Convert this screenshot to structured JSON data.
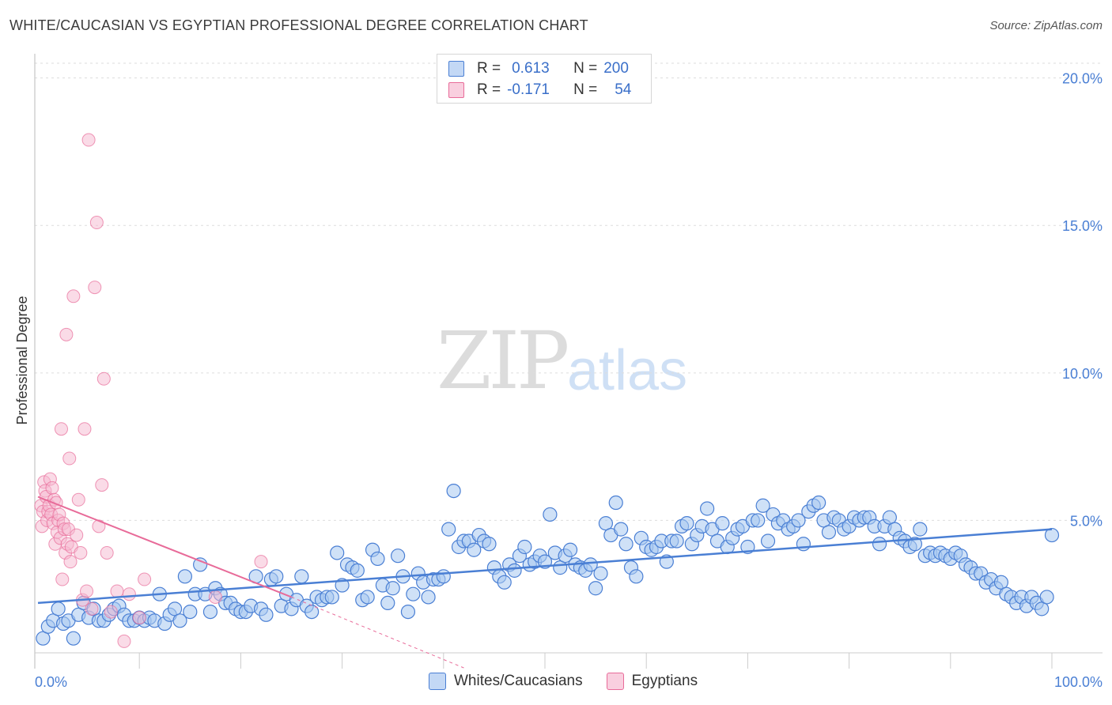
{
  "title": "WHITE/CAUCASIAN VS EGYPTIAN PROFESSIONAL DEGREE CORRELATION CHART",
  "source": "Source: ZipAtlas.com",
  "watermark": {
    "zip": "ZIP",
    "atlas": "atlas"
  },
  "colors": {
    "blue": "#4a7fd4",
    "blue_fill": "#a8c8f0",
    "pink": "#e86b99",
    "pink_fill": "#f6b8cf"
  },
  "legend": {
    "rows": [
      {
        "r_label": "R =",
        "r_value": "0.613",
        "n_label": "N =",
        "n_value": "200"
      },
      {
        "r_label": "R =",
        "r_value": "-0.171",
        "n_label": "N =",
        "n_value": "54"
      }
    ]
  },
  "bottom_legend": {
    "series1": "Whites/Caucasians",
    "series2": "Egyptians"
  },
  "chart_data": {
    "type": "scatter",
    "title": "WHITE/CAUCASIAN VS EGYPTIAN PROFESSIONAL DEGREE CORRELATION CHART",
    "xlabel": "",
    "ylabel": "Professional Degree",
    "xlim": [
      0,
      100
    ],
    "ylim": [
      0,
      20.5
    ],
    "y_ticks": [
      5,
      10,
      15,
      20
    ],
    "y_tick_labels": [
      "5.0%",
      "10.0%",
      "15.0%",
      "20.0%"
    ],
    "x_tick_labels": [
      "0.0%",
      "100.0%"
    ],
    "series": [
      {
        "name": "Whites/Caucasians",
        "r": 0.613,
        "n": 200,
        "trend": [
          [
            0,
            2.2
          ],
          [
            100,
            4.7
          ]
        ],
        "points": [
          [
            0.5,
            1.0
          ],
          [
            1,
            1.4
          ],
          [
            1.5,
            1.6
          ],
          [
            2,
            2.0
          ],
          [
            2.5,
            1.5
          ],
          [
            3,
            1.6
          ],
          [
            3.5,
            1.0
          ],
          [
            4,
            1.8
          ],
          [
            4.5,
            2.2
          ],
          [
            5,
            1.7
          ],
          [
            5.5,
            2.0
          ],
          [
            6,
            1.6
          ],
          [
            6.5,
            1.6
          ],
          [
            7,
            1.8
          ],
          [
            7.5,
            2.0
          ],
          [
            8,
            2.1
          ],
          [
            8.5,
            1.8
          ],
          [
            9,
            1.6
          ],
          [
            9.5,
            1.6
          ],
          [
            10,
            1.7
          ],
          [
            10.5,
            1.6
          ],
          [
            11,
            1.7
          ],
          [
            11.5,
            1.6
          ],
          [
            12,
            2.5
          ],
          [
            12.5,
            1.5
          ],
          [
            13,
            1.8
          ],
          [
            13.5,
            2.0
          ],
          [
            14,
            1.6
          ],
          [
            14.5,
            3.1
          ],
          [
            15,
            1.9
          ],
          [
            15.5,
            2.5
          ],
          [
            16,
            3.5
          ],
          [
            16.5,
            2.5
          ],
          [
            17,
            1.9
          ],
          [
            17.5,
            2.7
          ],
          [
            18,
            2.5
          ],
          [
            18.5,
            2.2
          ],
          [
            19,
            2.2
          ],
          [
            19.5,
            2.0
          ],
          [
            20,
            1.9
          ],
          [
            20.5,
            1.9
          ],
          [
            21,
            2.1
          ],
          [
            21.5,
            3.1
          ],
          [
            22,
            2.0
          ],
          [
            22.5,
            1.8
          ],
          [
            23,
            3.0
          ],
          [
            23.5,
            3.1
          ],
          [
            24,
            2.1
          ],
          [
            24.5,
            2.5
          ],
          [
            25,
            2.0
          ],
          [
            25.5,
            2.3
          ],
          [
            26,
            3.1
          ],
          [
            26.5,
            2.1
          ],
          [
            27,
            1.9
          ],
          [
            27.5,
            2.4
          ],
          [
            28,
            2.3
          ],
          [
            28.5,
            2.4
          ],
          [
            29,
            2.4
          ],
          [
            29.5,
            3.9
          ],
          [
            30,
            2.8
          ],
          [
            30.5,
            3.5
          ],
          [
            31,
            3.4
          ],
          [
            31.5,
            3.3
          ],
          [
            32,
            2.3
          ],
          [
            32.5,
            2.4
          ],
          [
            33,
            4.0
          ],
          [
            33.5,
            3.7
          ],
          [
            34,
            2.8
          ],
          [
            34.5,
            2.2
          ],
          [
            35,
            2.7
          ],
          [
            35.5,
            3.8
          ],
          [
            36,
            3.1
          ],
          [
            36.5,
            1.9
          ],
          [
            37,
            2.5
          ],
          [
            37.5,
            3.2
          ],
          [
            38,
            2.9
          ],
          [
            38.5,
            2.4
          ],
          [
            39,
            3.0
          ],
          [
            39.5,
            3.0
          ],
          [
            40,
            3.1
          ],
          [
            40.5,
            4.7
          ],
          [
            41,
            6.0
          ],
          [
            41.5,
            4.1
          ],
          [
            42,
            4.3
          ],
          [
            42.5,
            4.3
          ],
          [
            43,
            4.0
          ],
          [
            43.5,
            4.5
          ],
          [
            44,
            4.3
          ],
          [
            44.5,
            4.2
          ],
          [
            45,
            3.4
          ],
          [
            45.5,
            3.1
          ],
          [
            46,
            2.9
          ],
          [
            46.5,
            3.5
          ],
          [
            47,
            3.3
          ],
          [
            47.5,
            3.8
          ],
          [
            48,
            4.1
          ],
          [
            48.5,
            3.5
          ],
          [
            49,
            3.6
          ],
          [
            49.5,
            3.8
          ],
          [
            50,
            3.6
          ],
          [
            50.5,
            5.2
          ],
          [
            51,
            3.9
          ],
          [
            51.5,
            3.4
          ],
          [
            52,
            3.8
          ],
          [
            52.5,
            4.0
          ],
          [
            53,
            3.5
          ],
          [
            53.5,
            3.4
          ],
          [
            54,
            3.3
          ],
          [
            54.5,
            3.5
          ],
          [
            55,
            2.7
          ],
          [
            55.5,
            3.2
          ],
          [
            56,
            4.9
          ],
          [
            56.5,
            4.5
          ],
          [
            57,
            5.6
          ],
          [
            57.5,
            4.7
          ],
          [
            58,
            4.2
          ],
          [
            58.5,
            3.4
          ],
          [
            59,
            3.1
          ],
          [
            59.5,
            4.4
          ],
          [
            60,
            4.1
          ],
          [
            60.5,
            4.0
          ],
          [
            61,
            4.1
          ],
          [
            61.5,
            4.3
          ],
          [
            62,
            3.6
          ],
          [
            62.5,
            4.3
          ],
          [
            63,
            4.3
          ],
          [
            63.5,
            4.8
          ],
          [
            64,
            4.9
          ],
          [
            64.5,
            4.2
          ],
          [
            65,
            4.5
          ],
          [
            65.5,
            4.8
          ],
          [
            66,
            5.4
          ],
          [
            66.5,
            4.7
          ],
          [
            67,
            4.3
          ],
          [
            67.5,
            4.9
          ],
          [
            68,
            4.1
          ],
          [
            68.5,
            4.4
          ],
          [
            69,
            4.7
          ],
          [
            69.5,
            4.8
          ],
          [
            70,
            4.1
          ],
          [
            70.5,
            5.0
          ],
          [
            71,
            5.0
          ],
          [
            71.5,
            5.5
          ],
          [
            72,
            4.3
          ],
          [
            72.5,
            5.2
          ],
          [
            73,
            4.9
          ],
          [
            73.5,
            5.0
          ],
          [
            74,
            4.7
          ],
          [
            74.5,
            4.8
          ],
          [
            75,
            5.0
          ],
          [
            75.5,
            4.2
          ],
          [
            76,
            5.3
          ],
          [
            76.5,
            5.5
          ],
          [
            77,
            5.6
          ],
          [
            77.5,
            5.0
          ],
          [
            78,
            4.6
          ],
          [
            78.5,
            5.1
          ],
          [
            79,
            5.0
          ],
          [
            79.5,
            4.7
          ],
          [
            80,
            4.8
          ],
          [
            80.5,
            5.1
          ],
          [
            81,
            5.0
          ],
          [
            81.5,
            5.1
          ],
          [
            82,
            5.1
          ],
          [
            82.5,
            4.8
          ],
          [
            83,
            4.2
          ],
          [
            83.5,
            4.8
          ],
          [
            84,
            5.1
          ],
          [
            84.5,
            4.7
          ],
          [
            85,
            4.4
          ],
          [
            85.5,
            4.3
          ],
          [
            86,
            4.1
          ],
          [
            86.5,
            4.2
          ],
          [
            87,
            4.7
          ],
          [
            87.5,
            3.8
          ],
          [
            88,
            3.9
          ],
          [
            88.5,
            3.8
          ],
          [
            89,
            3.9
          ],
          [
            89.5,
            3.8
          ],
          [
            90,
            3.7
          ],
          [
            90.5,
            3.9
          ],
          [
            91,
            3.8
          ],
          [
            91.5,
            3.5
          ],
          [
            92,
            3.4
          ],
          [
            92.5,
            3.2
          ],
          [
            93,
            3.2
          ],
          [
            93.5,
            2.9
          ],
          [
            94,
            3.0
          ],
          [
            94.5,
            2.7
          ],
          [
            95,
            2.9
          ],
          [
            95.5,
            2.5
          ],
          [
            96,
            2.4
          ],
          [
            96.5,
            2.2
          ],
          [
            97,
            2.4
          ],
          [
            97.5,
            2.1
          ],
          [
            98,
            2.4
          ],
          [
            98.5,
            2.2
          ],
          [
            99,
            2.0
          ],
          [
            99.5,
            2.4
          ],
          [
            100,
            4.5
          ]
        ]
      },
      {
        "name": "Egyptians",
        "r": -0.171,
        "n": 54,
        "trend": [
          [
            0,
            5.8
          ],
          [
            25,
            2.4
          ]
        ],
        "trend_dashed": [
          [
            25,
            2.4
          ],
          [
            42,
            0.0
          ]
        ],
        "points": [
          [
            0.3,
            5.5
          ],
          [
            0.4,
            4.8
          ],
          [
            0.5,
            5.3
          ],
          [
            0.6,
            6.3
          ],
          [
            0.7,
            6.0
          ],
          [
            0.8,
            5.8
          ],
          [
            0.9,
            5.0
          ],
          [
            1.0,
            5.3
          ],
          [
            1.1,
            5.5
          ],
          [
            1.2,
            6.4
          ],
          [
            1.3,
            5.2
          ],
          [
            1.4,
            6.1
          ],
          [
            1.5,
            4.9
          ],
          [
            1.6,
            5.7
          ],
          [
            1.7,
            4.2
          ],
          [
            1.8,
            5.6
          ],
          [
            1.9,
            4.6
          ],
          [
            2.0,
            5.0
          ],
          [
            2.1,
            5.2
          ],
          [
            2.2,
            4.4
          ],
          [
            2.3,
            8.1
          ],
          [
            2.4,
            3.0
          ],
          [
            2.5,
            4.9
          ],
          [
            2.6,
            4.7
          ],
          [
            2.7,
            3.9
          ],
          [
            2.8,
            11.3
          ],
          [
            2.9,
            4.2
          ],
          [
            3.0,
            4.7
          ],
          [
            3.1,
            7.1
          ],
          [
            3.2,
            3.6
          ],
          [
            3.3,
            4.1
          ],
          [
            3.5,
            12.6
          ],
          [
            3.8,
            4.5
          ],
          [
            4.0,
            5.7
          ],
          [
            4.2,
            3.9
          ],
          [
            4.4,
            2.3
          ],
          [
            4.6,
            8.1
          ],
          [
            4.8,
            2.6
          ],
          [
            5.0,
            17.9
          ],
          [
            5.3,
            2.0
          ],
          [
            5.6,
            12.9
          ],
          [
            5.8,
            15.1
          ],
          [
            6.0,
            4.8
          ],
          [
            6.3,
            6.2
          ],
          [
            6.5,
            9.8
          ],
          [
            6.8,
            3.9
          ],
          [
            7.2,
            1.9
          ],
          [
            7.8,
            2.6
          ],
          [
            8.5,
            0.9
          ],
          [
            9.0,
            2.5
          ],
          [
            10.0,
            1.7
          ],
          [
            10.5,
            3.0
          ],
          [
            17.5,
            2.4
          ],
          [
            22.0,
            3.6
          ]
        ]
      }
    ]
  }
}
